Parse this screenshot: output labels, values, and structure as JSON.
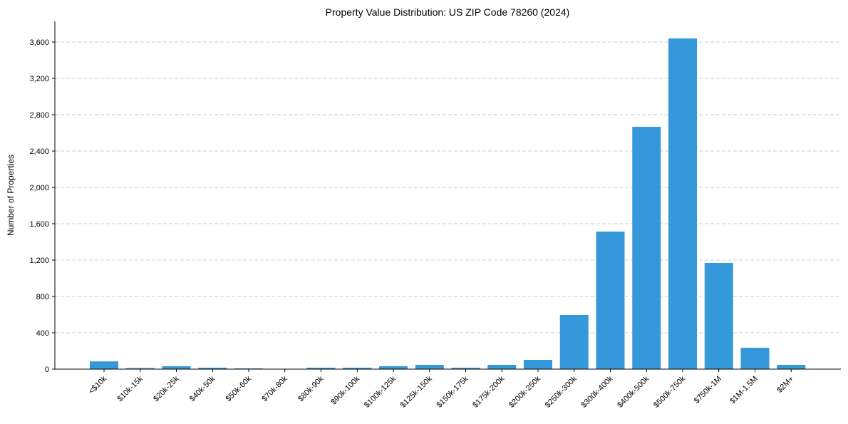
{
  "chart_data": {
    "type": "bar",
    "title": "Property Value Distribution: US ZIP Code 78260 (2024)",
    "xlabel": "",
    "ylabel": "Number of Properties",
    "ylim": [
      0,
      3820
    ],
    "yticks": [
      0,
      400,
      800,
      1200,
      1600,
      2000,
      2400,
      2800,
      3200,
      3600
    ],
    "ytick_labels": [
      "0",
      "400",
      "800",
      "1,200",
      "1,600",
      "2,000",
      "2,400",
      "2,800",
      "3,200",
      "3,600"
    ],
    "grid": "y-dashed",
    "color": "#3498db",
    "categories": [
      "<$10k",
      "$10k-15k",
      "$20k-25k",
      "$40k-50k",
      "$50k-60k",
      "$70k-80k",
      "$80k-90k",
      "$90k-100k",
      "$100k-125k",
      "$125k-150k",
      "$150k-175k",
      "$175k-200k",
      "$200k-250k",
      "$250k-300k",
      "$300k-400k",
      "$400k-500k",
      "$500k-750k",
      "$750k-1M",
      "$1M-1.5M",
      "$2M+"
    ],
    "values": [
      85,
      12,
      32,
      16,
      8,
      2,
      16,
      16,
      32,
      47,
      16,
      47,
      102,
      596,
      1514,
      2667,
      3640,
      1169,
      235,
      47
    ]
  }
}
